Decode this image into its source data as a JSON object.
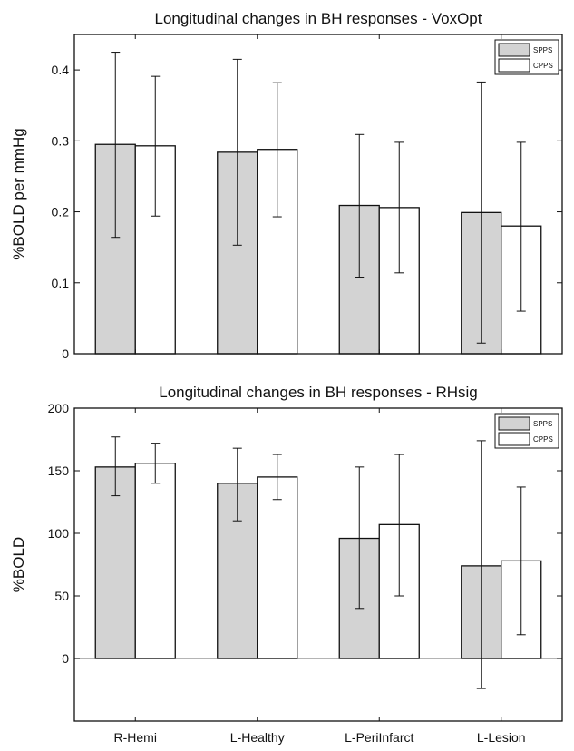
{
  "chart_data": [
    {
      "type": "bar",
      "title": "Longitudinal changes in BH responses - VoxOpt",
      "xlabel": "",
      "ylabel": "%BOLD per mmHg",
      "ylim": [
        0,
        0.45
      ],
      "yticks": [
        0,
        0.1,
        0.2,
        0.3,
        0.4
      ],
      "grid": false,
      "legend": "top-right",
      "categories": [
        "R-Hemi",
        "L-Healthy",
        "L-PeriInfarct",
        "L-Lesion"
      ],
      "show_category_labels": false,
      "series": [
        {
          "name": "SPPS",
          "color": "#d3d3d3",
          "values": [
            0.295,
            0.284,
            0.209,
            0.199
          ],
          "err_low": [
            0.164,
            0.153,
            0.108,
            0.015
          ],
          "err_high": [
            0.425,
            0.415,
            0.309,
            0.383
          ]
        },
        {
          "name": "CPPS",
          "color": "#ffffff",
          "values": [
            0.293,
            0.288,
            0.206,
            0.18
          ],
          "err_low": [
            0.194,
            0.193,
            0.114,
            0.06
          ],
          "err_high": [
            0.391,
            0.382,
            0.298,
            0.298
          ]
        }
      ]
    },
    {
      "type": "bar",
      "title": "Longitudinal changes in BH responses - RHsig",
      "xlabel": "",
      "ylabel": "%BOLD",
      "ylim": [
        -50,
        200
      ],
      "yticks": [
        0,
        50,
        100,
        150,
        200
      ],
      "zero_line": true,
      "grid": false,
      "legend": "top-right",
      "categories": [
        "R-Hemi",
        "L-Healthy",
        "L-PeriInfarct",
        "L-Lesion"
      ],
      "show_category_labels": true,
      "series": [
        {
          "name": "SPPS",
          "color": "#d3d3d3",
          "values": [
            153,
            140,
            96,
            74
          ],
          "err_low": [
            130,
            110,
            40,
            -24
          ],
          "err_high": [
            177,
            168,
            153,
            174
          ]
        },
        {
          "name": "CPPS",
          "color": "#ffffff",
          "values": [
            156,
            145,
            107,
            78
          ],
          "err_low": [
            140,
            127,
            50,
            19
          ],
          "err_high": [
            172,
            163,
            163,
            137
          ]
        }
      ]
    }
  ]
}
